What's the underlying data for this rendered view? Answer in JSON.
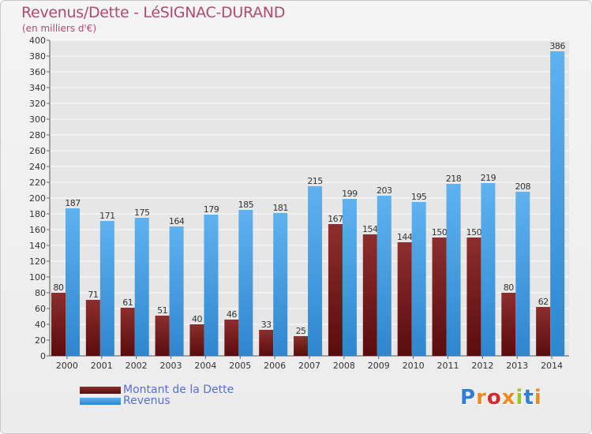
{
  "chart_data": {
    "type": "bar",
    "title": "Revenus/Dette - LéSIGNAC-DURAND",
    "subtitle": "(en milliers d'€)",
    "categories": [
      "2000",
      "2001",
      "2002",
      "2003",
      "2004",
      "2005",
      "2006",
      "2007",
      "2008",
      "2009",
      "2010",
      "2011",
      "2012",
      "2013",
      "2014"
    ],
    "series": [
      {
        "name": "Montant de la Dette",
        "color": "#7a1a1a",
        "values": [
          80,
          71,
          61,
          51,
          40,
          46,
          33,
          25,
          167,
          154,
          144,
          150,
          150,
          80,
          62
        ]
      },
      {
        "name": "Revenus",
        "color": "#4aa3e8",
        "values": [
          187,
          171,
          175,
          164,
          179,
          185,
          181,
          215,
          199,
          203,
          195,
          218,
          219,
          208,
          386
        ]
      }
    ],
    "ylim": [
      0,
      400
    ],
    "yticks": [
      0,
      20,
      40,
      60,
      80,
      100,
      120,
      140,
      160,
      180,
      200,
      220,
      240,
      260,
      280,
      300,
      320,
      340,
      360,
      380,
      400
    ],
    "legend_position": "bottom-left"
  },
  "logo": {
    "text": "Proxiti",
    "colors": [
      "#2f7fd6",
      "#f08a1c",
      "#d62a2a",
      "#f08a1c",
      "#9bc232",
      "#2f7fd6",
      "#f08a1c"
    ]
  }
}
